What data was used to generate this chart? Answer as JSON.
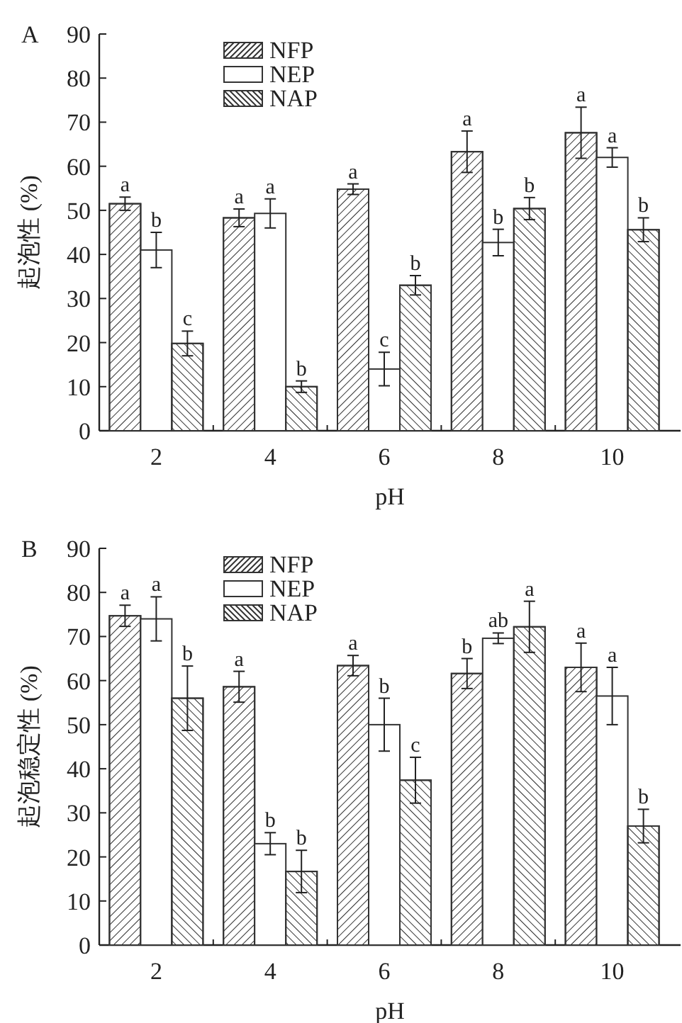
{
  "chart_data": [
    {
      "type": "bar",
      "title": "A",
      "xlabel": "pH",
      "ylabel": "起泡性 (%)",
      "categories": [
        "2",
        "4",
        "6",
        "8",
        "10"
      ],
      "ylim": [
        0,
        90
      ],
      "yticks": [
        0,
        10,
        20,
        30,
        40,
        50,
        60,
        70,
        80,
        90
      ],
      "legend": "top left",
      "series": [
        {
          "name": "NFP",
          "color": "#ffffff",
          "values": [
            51.5,
            48.3,
            54.8,
            63.3,
            67.6
          ],
          "errors": [
            1.5,
            2,
            1.2,
            4.7,
            5.8
          ],
          "value_labels": [
            "a",
            "a",
            "a",
            "a",
            "a"
          ]
        },
        {
          "name": "NEP",
          "color": "#ffffff",
          "values": [
            41,
            49.3,
            14,
            42.7,
            62
          ],
          "errors": [
            4,
            3.3,
            3.8,
            3,
            2.2
          ],
          "value_labels": [
            "b",
            "a",
            "c",
            "b",
            "a"
          ]
        },
        {
          "name": "NAP",
          "color": "#ffffff",
          "values": [
            19.8,
            10,
            33,
            50.4,
            45.6
          ],
          "errors": [
            2.8,
            1.3,
            2.2,
            2.5,
            2.7
          ],
          "value_labels": [
            "c",
            "b",
            "b",
            "b",
            "b"
          ]
        }
      ]
    },
    {
      "type": "bar",
      "title": "B",
      "xlabel": "pH",
      "ylabel": "起泡稳定性 (%)",
      "categories": [
        "2",
        "4",
        "6",
        "8",
        "10"
      ],
      "ylim": [
        0,
        90
      ],
      "yticks": [
        0,
        10,
        20,
        30,
        40,
        50,
        60,
        70,
        80,
        90
      ],
      "legend": "top left",
      "series": [
        {
          "name": "NFP",
          "color": "#ffffff",
          "values": [
            74.7,
            58.6,
            63.4,
            61.6,
            63
          ],
          "errors": [
            2.4,
            3.5,
            2.3,
            3.4,
            5.5
          ],
          "value_labels": [
            "a",
            "a",
            "a",
            "b",
            "a"
          ]
        },
        {
          "name": "NEP",
          "color": "#ffffff",
          "values": [
            74,
            23,
            50,
            69.6,
            56.5
          ],
          "errors": [
            5,
            2.5,
            6,
            1.2,
            6.5
          ],
          "value_labels": [
            "a",
            "b",
            "b",
            "ab",
            "a"
          ]
        },
        {
          "name": "NAP",
          "color": "#ffffff",
          "values": [
            56,
            16.7,
            37.4,
            72.2,
            27
          ],
          "errors": [
            7.3,
            4.8,
            5.2,
            5.8,
            3.8
          ],
          "value_labels": [
            "b",
            "b",
            "c",
            "a",
            "b"
          ]
        }
      ]
    }
  ]
}
